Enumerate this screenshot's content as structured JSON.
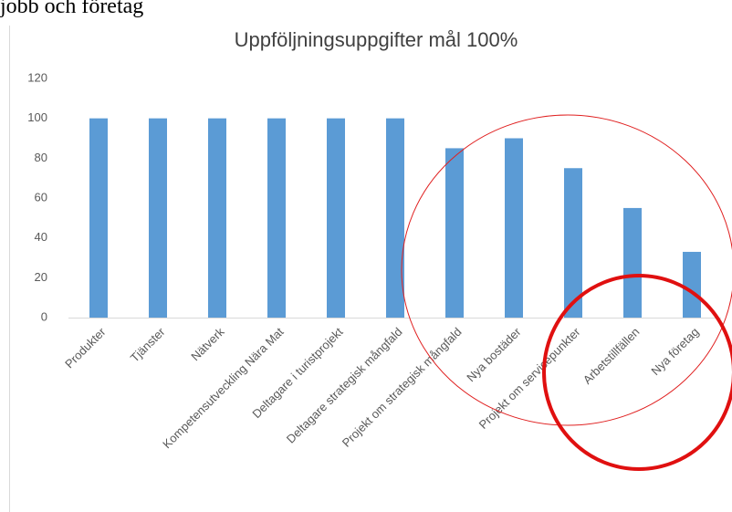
{
  "caption": "jobb och företag",
  "chart_data": {
    "type": "bar",
    "title": "Uppföljningsuppgifter mål 100%",
    "categories": [
      "Produkter",
      "Tjänster",
      "Nätverk",
      "Kompetensutveckling Nära Mat",
      "Deltagare i turistprojekt",
      "Deltagare strategisk mångfald",
      "Projekt om strategisk mångfald",
      "Nya bostäder",
      "Projekt om servicepunkter",
      "Arbetstillfällen",
      "Nya företag"
    ],
    "values": [
      100,
      100,
      100,
      100,
      100,
      100,
      85,
      90,
      75,
      55,
      33
    ],
    "color": "#5b9bd5",
    "ylim": [
      0,
      120
    ],
    "yticks": [
      0,
      20,
      40,
      60,
      80,
      100,
      120
    ],
    "grid": false
  }
}
